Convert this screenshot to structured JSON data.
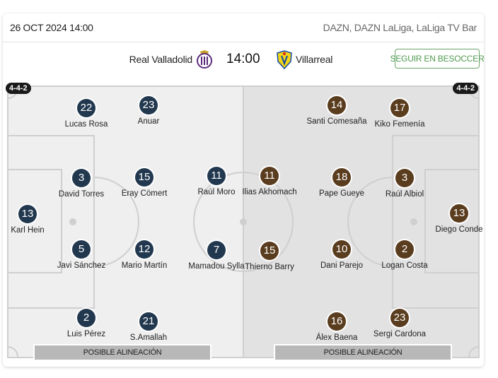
{
  "header": {
    "date": "26 OCT 2024 14:00",
    "tv": "DAZN, DAZN LaLiga, LaLiga TV Bar"
  },
  "match": {
    "home": "Real Valladolid",
    "time": "14:00",
    "away": "Villarreal",
    "follow_label": "SEGUIR EN BESOCCER"
  },
  "lineups": {
    "home_formation": "4-4-2",
    "away_formation": "4-4-2",
    "home": [
      {
        "num": "13",
        "name": "Karl Hein"
      },
      {
        "num": "2",
        "name": "Luis Pérez"
      },
      {
        "num": "5",
        "name": "Javi Sánchez"
      },
      {
        "num": "3",
        "name": "David Torres"
      },
      {
        "num": "22",
        "name": "Lucas Rosa"
      },
      {
        "num": "21",
        "name": "S.Amallah"
      },
      {
        "num": "12",
        "name": "Mario Martín"
      },
      {
        "num": "15",
        "name": "Eray Cömert"
      },
      {
        "num": "23",
        "name": "Anuar"
      },
      {
        "num": "7",
        "name": "Mamadou Sylla"
      },
      {
        "num": "11",
        "name": "Raúl Moro"
      }
    ],
    "away": [
      {
        "num": "13",
        "name": "Diego Conde"
      },
      {
        "num": "17",
        "name": "Kiko Femenía"
      },
      {
        "num": "3",
        "name": "Raúl Albiol"
      },
      {
        "num": "2",
        "name": "Logan Costa"
      },
      {
        "num": "23",
        "name": "Sergi Cardona"
      },
      {
        "num": "14",
        "name": "Santi Comesaña"
      },
      {
        "num": "18",
        "name": "Pape Gueye"
      },
      {
        "num": "10",
        "name": "Dani Parejo"
      },
      {
        "num": "16",
        "name": "Álex Baena"
      },
      {
        "num": "11",
        "name": "Ilias Akhomach"
      },
      {
        "num": "15",
        "name": "Thierno Barry"
      }
    ]
  },
  "footer": {
    "home_label": "POSIBLE ALINEACIÓN",
    "away_label": "POSIBLE ALINEACIÓN"
  },
  "colors": {
    "home_marker": "#22384f",
    "away_marker": "#5a3c1e",
    "follow_accent": "#4e9a4e"
  }
}
